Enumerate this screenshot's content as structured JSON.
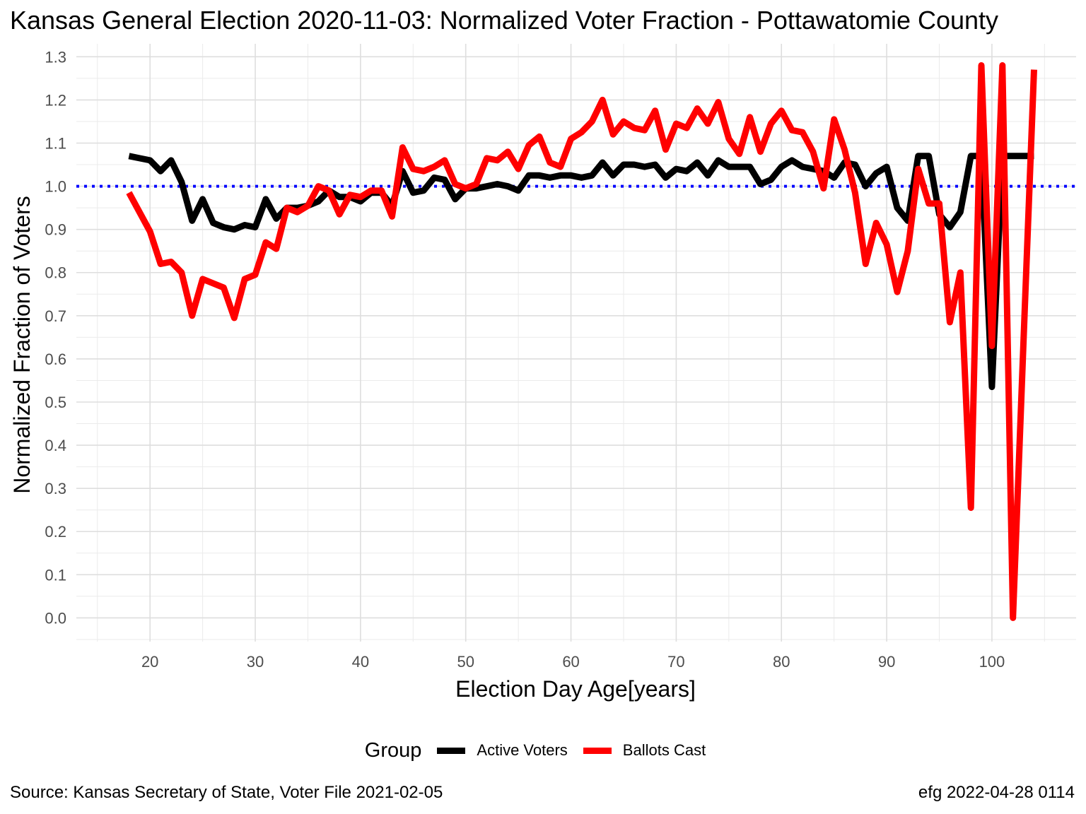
{
  "chart_data": {
    "type": "line",
    "title": "Kansas General Election 2020-11-03:  Normalized Voter Fraction - Pottawatomie County",
    "xlabel": "Election Day Age[years]",
    "ylabel": "Normalized Fraction of Voters",
    "xlim": [
      13,
      108
    ],
    "ylim": [
      -0.055,
      1.33
    ],
    "x_ticks": [
      20,
      30,
      40,
      50,
      60,
      70,
      80,
      90,
      100
    ],
    "y_ticks": [
      0.0,
      0.1,
      0.2,
      0.3,
      0.4,
      0.5,
      0.6,
      0.7,
      0.8,
      0.9,
      1.0,
      1.1,
      1.2,
      1.3
    ],
    "y_tick_labels": [
      "0.0",
      "0.1",
      "0.2",
      "0.3",
      "0.4",
      "0.5",
      "0.6",
      "0.7",
      "0.8",
      "0.9",
      "1.0",
      "1.1",
      "1.2",
      "1.3"
    ],
    "reference_line": {
      "y": 1.0,
      "color": "#0000ff",
      "style": "dotted"
    },
    "grid": true,
    "legend": {
      "title": "Group",
      "position": "bottom"
    },
    "series": [
      {
        "name": "Active Voters",
        "color": "#000000",
        "x": [
          18,
          19,
          20,
          21,
          22,
          23,
          24,
          25,
          26,
          27,
          28,
          29,
          30,
          31,
          32,
          33,
          34,
          35,
          36,
          37,
          38,
          39,
          40,
          41,
          42,
          43,
          44,
          45,
          46,
          47,
          48,
          49,
          50,
          51,
          52,
          53,
          54,
          55,
          56,
          57,
          58,
          59,
          60,
          61,
          62,
          63,
          64,
          65,
          66,
          67,
          68,
          69,
          70,
          71,
          72,
          73,
          74,
          75,
          76,
          77,
          78,
          79,
          80,
          81,
          82,
          83,
          84,
          85,
          86,
          87,
          88,
          89,
          90,
          91,
          92,
          93,
          94,
          95,
          96,
          97,
          98,
          99,
          100,
          101,
          102,
          103,
          104
        ],
        "values": [
          1.07,
          1.065,
          1.06,
          1.035,
          1.06,
          1.01,
          0.92,
          0.97,
          0.915,
          0.905,
          0.9,
          0.91,
          0.905,
          0.97,
          0.925,
          0.95,
          0.95,
          0.955,
          0.965,
          0.99,
          0.975,
          0.975,
          0.965,
          0.985,
          0.985,
          0.955,
          1.035,
          0.985,
          0.99,
          1.02,
          1.015,
          0.97,
          0.995,
          0.995,
          1.0,
          1.005,
          1.0,
          0.99,
          1.025,
          1.025,
          1.02,
          1.025,
          1.025,
          1.02,
          1.025,
          1.055,
          1.025,
          1.05,
          1.05,
          1.045,
          1.05,
          1.02,
          1.04,
          1.035,
          1.055,
          1.025,
          1.06,
          1.045,
          1.045,
          1.045,
          1.005,
          1.015,
          1.045,
          1.06,
          1.045,
          1.04,
          1.035,
          1.02,
          1.055,
          1.05,
          1.0,
          1.03,
          1.045,
          0.95,
          0.92,
          1.07,
          1.07,
          0.935,
          0.905,
          0.94,
          1.07,
          1.07,
          0.535,
          1.07,
          1.07,
          1.07,
          1.07
        ]
      },
      {
        "name": "Ballots Cast",
        "color": "#ff0000",
        "x": [
          18,
          19,
          20,
          21,
          22,
          23,
          24,
          25,
          26,
          27,
          28,
          29,
          30,
          31,
          32,
          33,
          34,
          35,
          36,
          37,
          38,
          39,
          40,
          41,
          42,
          43,
          44,
          45,
          46,
          47,
          48,
          49,
          50,
          51,
          52,
          53,
          54,
          55,
          56,
          57,
          58,
          59,
          60,
          61,
          62,
          63,
          64,
          65,
          66,
          67,
          68,
          69,
          70,
          71,
          72,
          73,
          74,
          75,
          76,
          77,
          78,
          79,
          80,
          81,
          82,
          83,
          84,
          85,
          86,
          87,
          88,
          89,
          90,
          91,
          92,
          93,
          94,
          95,
          96,
          97,
          98,
          99,
          100,
          101,
          102,
          103,
          104
        ],
        "values": [
          0.985,
          0.94,
          0.895,
          0.82,
          0.825,
          0.8,
          0.7,
          0.785,
          0.775,
          0.765,
          0.695,
          0.785,
          0.795,
          0.87,
          0.855,
          0.95,
          0.94,
          0.955,
          1.0,
          0.99,
          0.935,
          0.98,
          0.975,
          0.99,
          0.99,
          0.93,
          1.09,
          1.04,
          1.035,
          1.045,
          1.06,
          1.005,
          0.995,
          1.005,
          1.065,
          1.06,
          1.08,
          1.04,
          1.095,
          1.115,
          1.055,
          1.045,
          1.11,
          1.125,
          1.15,
          1.2,
          1.12,
          1.15,
          1.135,
          1.13,
          1.175,
          1.085,
          1.145,
          1.135,
          1.18,
          1.145,
          1.195,
          1.11,
          1.075,
          1.16,
          1.08,
          1.145,
          1.175,
          1.13,
          1.125,
          1.08,
          0.995,
          1.155,
          1.085,
          0.985,
          0.82,
          0.915,
          0.865,
          0.755,
          0.85,
          1.04,
          0.96,
          0.96,
          0.685,
          0.8,
          0.255,
          1.28,
          0.63,
          1.28,
          0.0,
          0.64,
          1.27
        ]
      }
    ],
    "caption_left": "Source:  Kansas Secretary of State, Voter File  2021-02-05",
    "caption_right": "efg 2022-04-28 0114"
  }
}
